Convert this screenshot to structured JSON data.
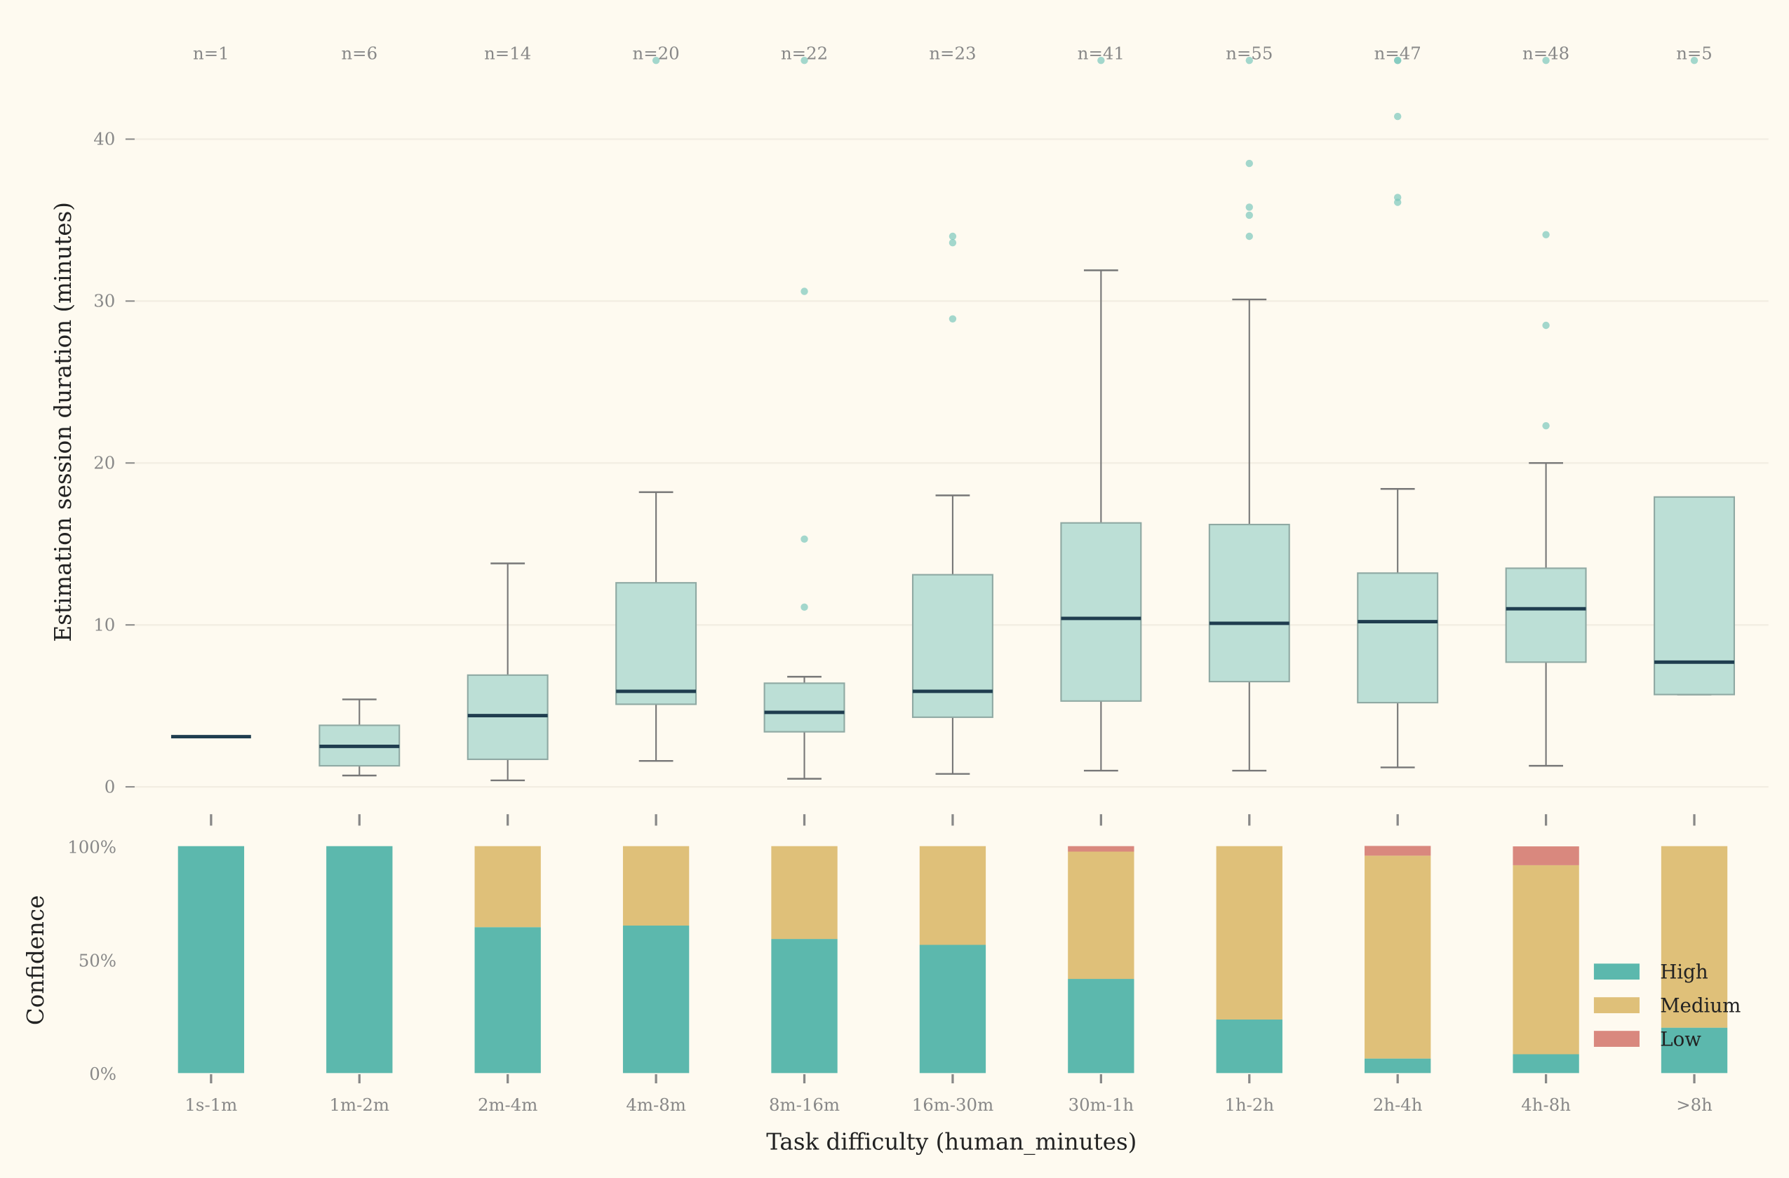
{
  "chart_data": [
    {
      "type": "box",
      "ylabel": "Estimation session duration (minutes)",
      "xlabel": "Task difficulty (human_minutes)",
      "ylim": [
        0,
        45
      ],
      "yticks": [
        0,
        10,
        20,
        30,
        40
      ],
      "grid": true,
      "categories": [
        "1s-1m",
        "1m-2m",
        "2m-4m",
        "4m-8m",
        "8m-16m",
        "16m-30m",
        "30m-1h",
        "1h-2h",
        "2h-4h",
        "4h-8h",
        ">8h"
      ],
      "n_labels": [
        "n=1",
        "n=6",
        "n=14",
        "n=20",
        "n=22",
        "n=23",
        "n=41",
        "n=55",
        "n=47",
        "n=48",
        "n=5"
      ],
      "boxes": [
        {
          "low": 3.1,
          "q1": 3.1,
          "median": 3.1,
          "q3": 3.1,
          "high": 3.1,
          "outliers": []
        },
        {
          "low": 0.7,
          "q1": 1.3,
          "median": 2.5,
          "q3": 3.8,
          "high": 5.4,
          "outliers": []
        },
        {
          "low": 0.4,
          "q1": 1.7,
          "median": 4.4,
          "q3": 6.9,
          "high": 13.8,
          "outliers": []
        },
        {
          "low": 1.6,
          "q1": 5.1,
          "median": 5.9,
          "q3": 12.6,
          "high": 18.2,
          "outliers": [
            45
          ]
        },
        {
          "low": 0.5,
          "q1": 3.4,
          "median": 4.6,
          "q3": 6.4,
          "high": 6.8,
          "outliers": [
            11.1,
            15.3,
            30.6,
            45
          ]
        },
        {
          "low": 0.8,
          "q1": 4.3,
          "median": 5.9,
          "q3": 13.1,
          "high": 18.0,
          "outliers": [
            28.9,
            33.6,
            34.0
          ]
        },
        {
          "low": 1.0,
          "q1": 5.3,
          "median": 10.4,
          "q3": 16.3,
          "high": 31.9,
          "outliers": [
            45
          ]
        },
        {
          "low": 1.0,
          "q1": 6.5,
          "median": 10.1,
          "q3": 16.2,
          "high": 30.1,
          "outliers": [
            34.0,
            35.3,
            35.8,
            38.5,
            45
          ]
        },
        {
          "low": 1.2,
          "q1": 5.2,
          "median": 10.2,
          "q3": 13.2,
          "high": 18.4,
          "outliers": [
            36.1,
            36.4,
            41.4,
            45,
            45
          ]
        },
        {
          "low": 1.3,
          "q1": 7.7,
          "median": 11.0,
          "q3": 13.5,
          "high": 20.0,
          "outliers": [
            22.3,
            28.5,
            34.1,
            45
          ]
        },
        {
          "low": 5.7,
          "q1": 5.7,
          "median": 7.7,
          "q3": 17.9,
          "high": 17.9,
          "outliers": [
            45
          ]
        }
      ],
      "colors": {
        "box_fill": "#bcdfd6",
        "box_edge": "#8fa9a3",
        "median": "#1f3d4f",
        "whisker": "#777777",
        "outlier": "#7cc7bc"
      }
    },
    {
      "type": "stacked-bar",
      "ylabel": "Confidence",
      "xlabel": "Task difficulty (human_minutes)",
      "ylim": [
        0,
        100
      ],
      "ytick_labels": [
        "0%",
        "50%",
        "100%"
      ],
      "categories": [
        "1s-1m",
        "1m-2m",
        "2m-4m",
        "4m-8m",
        "8m-16m",
        "16m-30m",
        "30m-1h",
        "1h-2h",
        "2h-4h",
        "4h-8h",
        ">8h"
      ],
      "series": [
        {
          "name": "High",
          "color": "#5cb8ad",
          "values": [
            100,
            100,
            64.3,
            65.0,
            59.1,
            56.5,
            41.5,
            23.6,
            6.4,
            8.3,
            20.0
          ]
        },
        {
          "name": "Medium",
          "color": "#dfc079",
          "values": [
            0,
            0,
            35.7,
            35.0,
            40.9,
            43.5,
            56.1,
            76.4,
            89.4,
            83.3,
            80.0
          ]
        },
        {
          "name": "Low",
          "color": "#d9887e",
          "values": [
            0,
            0,
            0,
            0,
            0,
            0,
            2.4,
            0,
            4.3,
            8.3,
            0
          ]
        }
      ],
      "legend_position": "lower-right"
    }
  ]
}
